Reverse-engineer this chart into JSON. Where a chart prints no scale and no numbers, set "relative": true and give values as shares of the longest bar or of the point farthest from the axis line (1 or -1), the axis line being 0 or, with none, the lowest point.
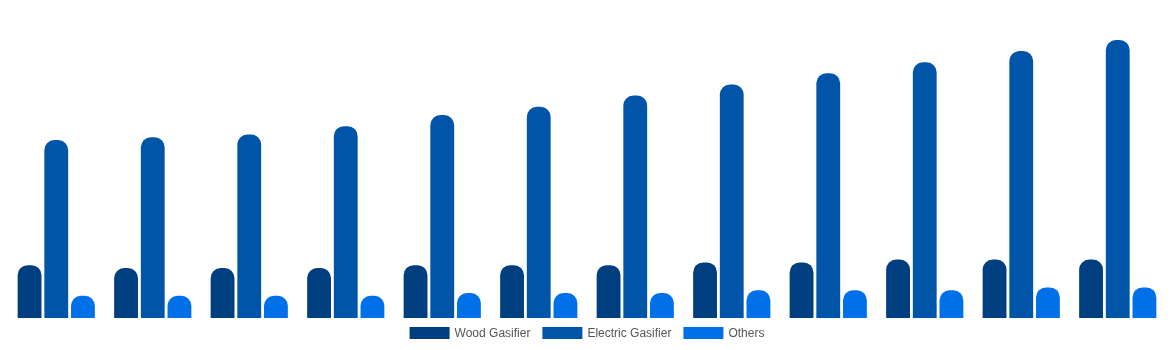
{
  "chart_data": {
    "type": "bar",
    "relative": true,
    "legend": "bottom",
    "categories": [
      null,
      null,
      null,
      null,
      null,
      null,
      null,
      null,
      null,
      null,
      null,
      null
    ],
    "series": [
      {
        "name": "Wood Gasifier",
        "color": "#003f7f",
        "values": [
          0.19,
          0.18,
          0.18,
          0.18,
          0.19,
          0.19,
          0.19,
          0.2,
          0.2,
          0.21,
          0.21,
          0.21
        ]
      },
      {
        "name": "Electric Gasifier",
        "color": "#0055a8",
        "values": [
          0.64,
          0.65,
          0.66,
          0.69,
          0.73,
          0.76,
          0.8,
          0.84,
          0.88,
          0.92,
          0.96,
          1
        ]
      },
      {
        "name": "Others",
        "color": "#0070e8",
        "values": [
          0.08,
          0.08,
          0.08,
          0.08,
          0.09,
          0.09,
          0.09,
          0.1,
          0.1,
          0.1,
          0.11,
          0.11
        ]
      }
    ]
  }
}
